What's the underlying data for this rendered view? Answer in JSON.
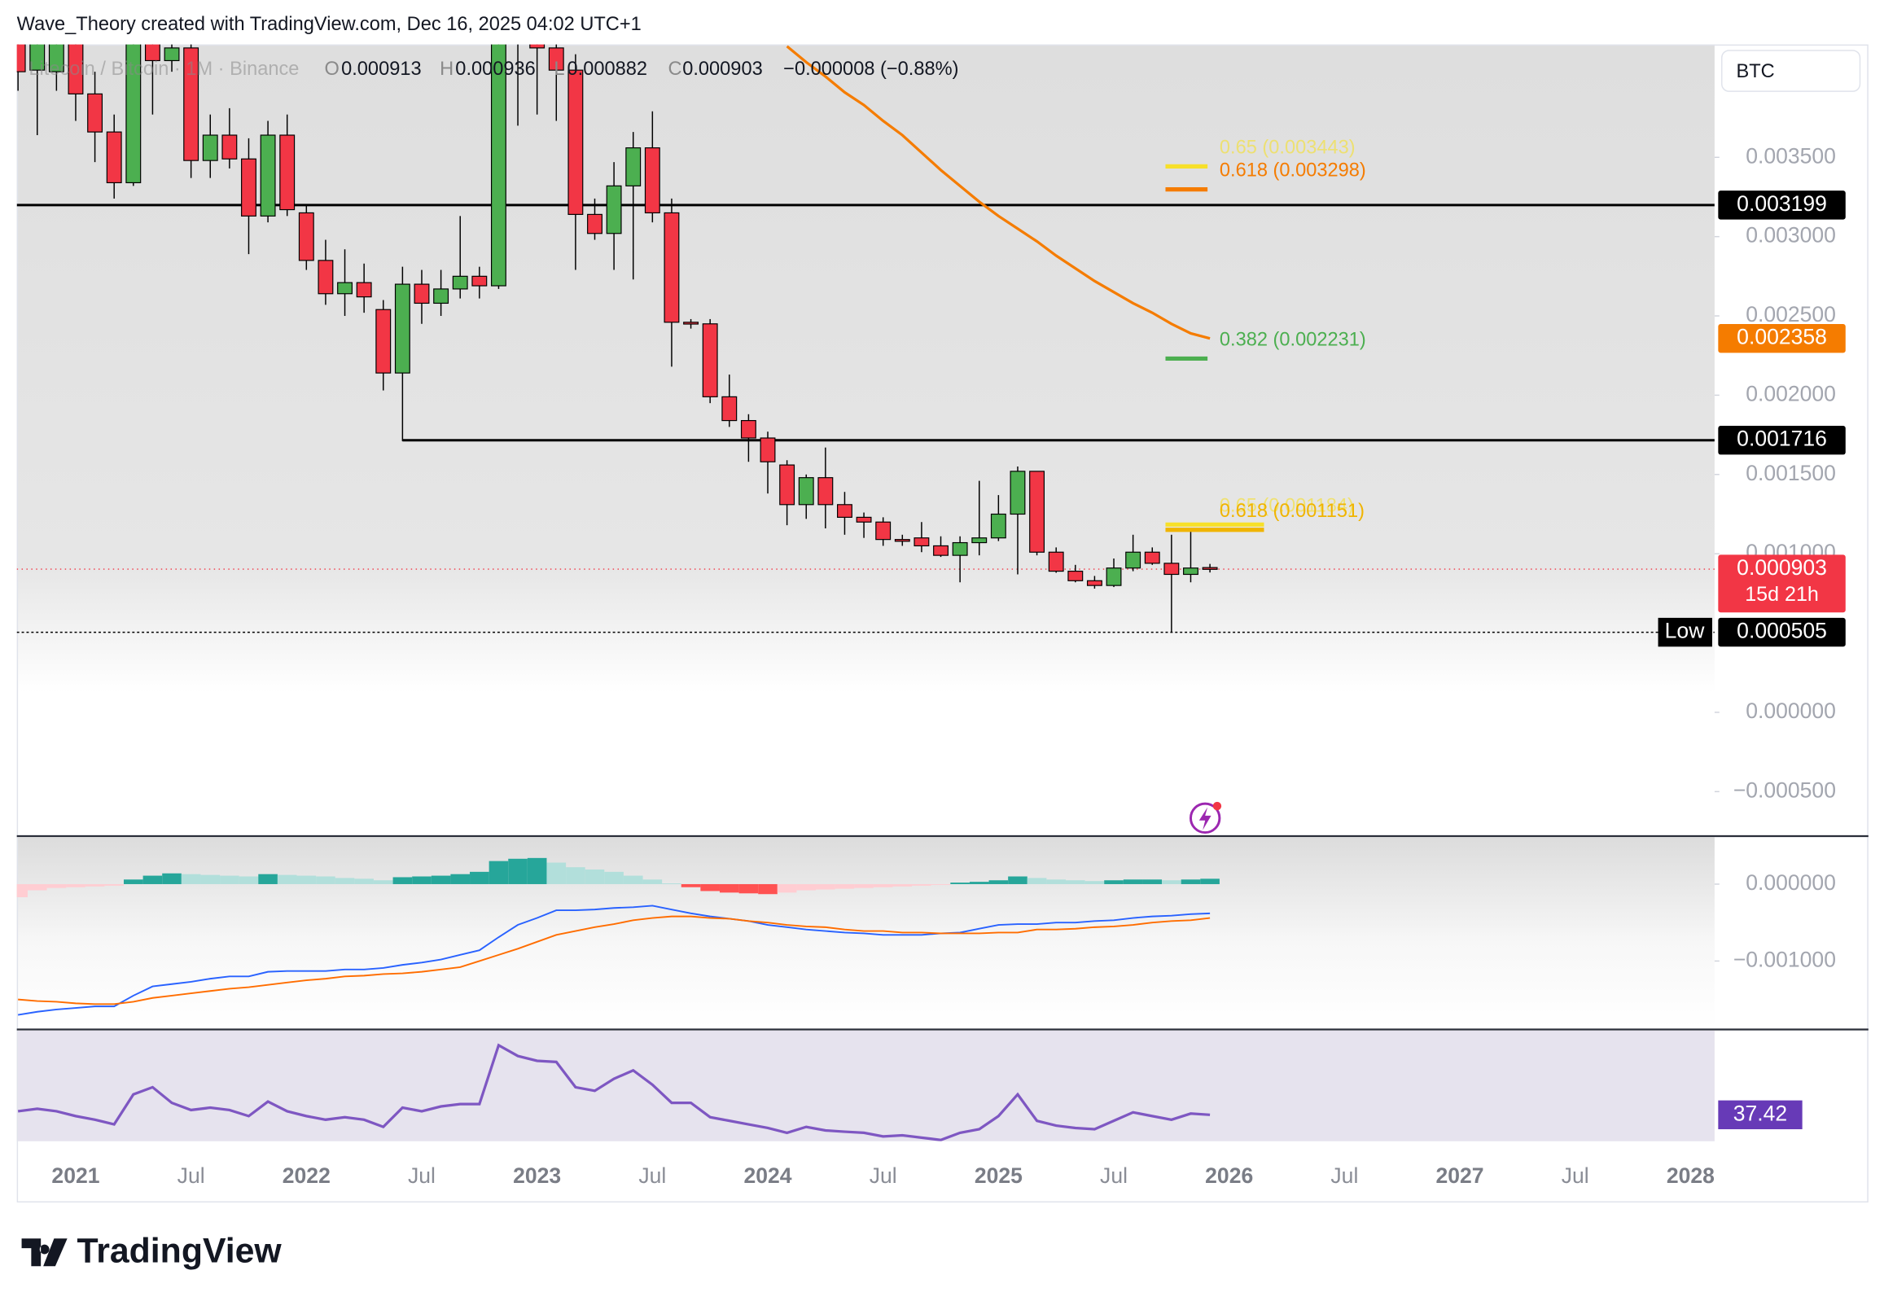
{
  "header": {
    "attribution": "Wave_Theory created with TradingView.com, Dec 16, 2025 04:02 UTC+1"
  },
  "currency_button": "BTC",
  "footer": {
    "logo_text": "TradingView"
  },
  "chart_data": [
    {
      "type": "candlestick",
      "symbol": "Litecoin / Bitcoin · 1M · Binance",
      "legend": {
        "o": "O",
        "h": "H",
        "l": "L",
        "c": "C",
        "change": "−0.000008 (−0.88%)"
      },
      "up_color": "#4caf50",
      "down_color": "#f23645",
      "x_labels": [
        "2021",
        "Jul",
        "2022",
        "Jul",
        "2023",
        "Jul",
        "2024",
        "Jul",
        "2025",
        "Jul",
        "2026",
        "Jul",
        "2027",
        "Jul",
        "2028"
      ],
      "open": [
        0.0043,
        0.00405,
        0.00404,
        0.00427,
        0.0039,
        0.00366,
        0.00334,
        0.0043,
        0.00411,
        0.00419,
        0.00348,
        0.00364,
        0.00349,
        0.00313,
        0.00364,
        0.00315,
        0.00285,
        0.00264,
        0.00271,
        0.00254,
        0.00214,
        0.0027,
        0.00258,
        0.00267,
        0.00275,
        0.00269,
        0.00434,
        0.00427,
        0.00419,
        0.00405,
        0.00314,
        0.00302,
        0.00332,
        0.00356,
        0.00315,
        0.00246,
        0.00245,
        0.00199,
        0.00184,
        0.00173,
        0.00156,
        0.00131,
        0.00148,
        0.00131,
        0.00123,
        0.0012,
        0.00109,
        0.0011,
        0.00105,
        0.00099,
        0.00107,
        0.0011,
        0.00125,
        0.00152,
        0.00101,
        0.00089,
        0.00083,
        0.0008,
        0.00091,
        0.00101,
        0.00094,
        0.00087,
        0.000913
      ],
      "high": [
        0.00442,
        0.00442,
        0.00438,
        0.00438,
        0.00404,
        0.00377,
        0.00442,
        0.00442,
        0.00427,
        0.00427,
        0.00377,
        0.00381,
        0.00362,
        0.00373,
        0.00377,
        0.0032,
        0.00298,
        0.00292,
        0.00283,
        0.0026,
        0.00281,
        0.00279,
        0.00279,
        0.00313,
        0.00281,
        0.00442,
        0.00442,
        0.00442,
        0.00434,
        0.00415,
        0.00324,
        0.00347,
        0.00366,
        0.00379,
        0.00324,
        0.00248,
        0.00248,
        0.00213,
        0.00188,
        0.00177,
        0.00159,
        0.0015,
        0.00167,
        0.00139,
        0.00126,
        0.00123,
        0.00112,
        0.0012,
        0.00111,
        0.00111,
        0.00146,
        0.00137,
        0.00155,
        0.00152,
        0.00104,
        0.00093,
        0.00086,
        0.00097,
        0.00112,
        0.00104,
        0.00112,
        0.00116,
        0.000936
      ],
      "low": [
        0.00392,
        0.00364,
        0.00392,
        0.00373,
        0.00347,
        0.00324,
        0.00332,
        0.00377,
        0.00404,
        0.00337,
        0.00337,
        0.00343,
        0.00289,
        0.00309,
        0.00313,
        0.00279,
        0.00257,
        0.0025,
        0.00252,
        0.00203,
        0.00171,
        0.00245,
        0.0025,
        0.00261,
        0.00261,
        0.00267,
        0.0037,
        0.00377,
        0.00373,
        0.00279,
        0.00298,
        0.00279,
        0.00273,
        0.00309,
        0.00218,
        0.00242,
        0.00195,
        0.0018,
        0.00158,
        0.00138,
        0.00118,
        0.00122,
        0.00116,
        0.00112,
        0.0011,
        0.00105,
        0.00105,
        0.00101,
        0.00098,
        0.00082,
        0.00099,
        0.00108,
        0.00087,
        0.00099,
        0.00088,
        0.00082,
        0.00078,
        0.00079,
        0.00089,
        0.00093,
        0.000505,
        0.00082,
        0.000882
      ],
      "close": [
        0.00404,
        0.0043,
        0.00427,
        0.0039,
        0.00366,
        0.00334,
        0.00434,
        0.00411,
        0.00419,
        0.00348,
        0.00364,
        0.00349,
        0.00313,
        0.00364,
        0.00317,
        0.00285,
        0.00264,
        0.00271,
        0.00262,
        0.00214,
        0.0027,
        0.00258,
        0.00267,
        0.00275,
        0.00269,
        0.00434,
        0.00427,
        0.00419,
        0.00405,
        0.00314,
        0.00302,
        0.00332,
        0.00356,
        0.00315,
        0.00246,
        0.00245,
        0.00199,
        0.00184,
        0.00173,
        0.00158,
        0.00131,
        0.00148,
        0.00131,
        0.00123,
        0.0012,
        0.00109,
        0.00108,
        0.00105,
        0.00099,
        0.00107,
        0.0011,
        0.00125,
        0.00152,
        0.00101,
        0.00089,
        0.00083,
        0.0008,
        0.00091,
        0.00101,
        0.00094,
        0.00087,
        0.00091,
        0.000903
      ],
      "ma": {
        "color": "#f57c00",
        "values": [
          null,
          null,
          null,
          null,
          null,
          null,
          null,
          null,
          null,
          null,
          null,
          null,
          null,
          null,
          null,
          null,
          null,
          null,
          null,
          null,
          null,
          null,
          null,
          null,
          null,
          null,
          null,
          null,
          null,
          null,
          null,
          null,
          null,
          null,
          null,
          null,
          null,
          null,
          null,
          null,
          0.0042,
          0.0041,
          0.00401,
          0.00391,
          0.00383,
          0.00373,
          0.00364,
          0.00353,
          0.00342,
          0.00332,
          0.00322,
          0.00313,
          0.00305,
          0.00297,
          0.00288,
          0.0028,
          0.00272,
          0.00265,
          0.00258,
          0.00252,
          0.00245,
          0.00239,
          0.002358
        ]
      },
      "levels": [
        {
          "value": 0.003199,
          "color": "#000000"
        },
        {
          "value": 0.001716,
          "color": "#000000"
        }
      ],
      "low_marker": {
        "label": "Low"
      },
      "countdown": "15d 21h",
      "fib_levels": [
        {
          "label": "0.65 (0.003443)",
          "price": 0.003443,
          "color": "#f7e02a"
        },
        {
          "label": "0.618 (0.003298)",
          "price": 0.003298,
          "color": "#f57c00"
        },
        {
          "label": "0.382 (0.002231)",
          "price": 0.002231,
          "color": "#4caf50"
        },
        {
          "label": "0.65 (0.001184)",
          "price": 0.001184,
          "color": "#f7e02a"
        },
        {
          "label": "0.618 (0.001151)",
          "price": 0.001151,
          "color": "#f0b400"
        }
      ],
      "ylim": [
        -0.000773,
        0.004212
      ],
      "yticks": [
        {
          "value": -0.0005,
          "label": "−0.000500"
        },
        {
          "value": 0,
          "label": "0.000000"
        },
        {
          "value": 0.001,
          "label": "0.001000"
        },
        {
          "value": 0.0015,
          "label": "0.001500"
        },
        {
          "value": 0.002,
          "label": "0.002000"
        },
        {
          "value": 0.0025,
          "label": "0.002500"
        },
        {
          "value": 0.003,
          "label": "0.003000"
        },
        {
          "value": 0.0035,
          "label": "0.003500"
        }
      ]
    },
    {
      "type": "macd",
      "bar_colors": [
        "#26a69a",
        "#b2dfdb",
        "#ff5252",
        "#ffcdd2"
      ],
      "histogram": [
        -0.00017,
        -8e-05,
        -5e-05,
        -4e-05,
        -3e-05,
        -2e-05,
        6e-05,
        0.00011,
        0.00014,
        0.00013,
        0.00012,
        0.00011,
        0.0001,
        0.00013,
        0.00012,
        0.00011,
        0.0001,
        8e-05,
        7e-05,
        5e-05,
        9e-05,
        0.0001,
        0.00011,
        0.00013,
        0.00016,
        0.0003,
        0.00033,
        0.00034,
        0.00028,
        0.00022,
        0.00019,
        0.00016,
        0.00011,
        6e-05,
        1e-05,
        -4e-05,
        -9e-05,
        -0.00011,
        -0.00012,
        -0.00013,
        -0.00011,
        -8e-05,
        -7e-05,
        -6e-05,
        -5e-05,
        -4e-05,
        -3e-05,
        -2e-05,
        -1e-05,
        2e-05,
        3e-05,
        5e-05,
        0.0001,
        8e-05,
        6e-05,
        5e-05,
        4e-05,
        5e-05,
        6e-05,
        6e-05,
        5e-05,
        6e-05,
        7e-05
      ],
      "series": [
        {
          "color": "#2962ff",
          "values": [
            -0.0017,
            -0.00166,
            -0.00163,
            -0.00161,
            -0.00159,
            -0.00159,
            -0.00145,
            -0.00133,
            -0.0013,
            -0.00127,
            -0.00123,
            -0.0012,
            -0.0012,
            -0.00114,
            -0.00113,
            -0.00113,
            -0.00113,
            -0.00111,
            -0.00111,
            -0.00109,
            -0.00105,
            -0.00102,
            -0.00098,
            -0.00092,
            -0.00086,
            -0.00069,
            -0.00053,
            -0.00044,
            -0.00034,
            -0.00034,
            -0.00033,
            -0.00031,
            -0.0003,
            -0.00028,
            -0.00033,
            -0.00038,
            -0.00042,
            -0.00045,
            -0.00048,
            -0.00053,
            -0.00056,
            -0.00059,
            -0.00061,
            -0.00063,
            -0.00064,
            -0.00066,
            -0.00066,
            -0.00066,
            -0.00064,
            -0.00063,
            -0.00058,
            -0.00053,
            -0.00052,
            -0.00052,
            -0.0005,
            -0.0005,
            -0.00048,
            -0.00047,
            -0.00044,
            -0.00042,
            -0.00041,
            -0.00039,
            -0.00038
          ]
        },
        {
          "color": "#ff6d00",
          "values": [
            -0.0015,
            -0.00152,
            -0.00153,
            -0.00155,
            -0.00156,
            -0.00156,
            -0.00153,
            -0.00148,
            -0.00145,
            -0.00142,
            -0.00139,
            -0.00136,
            -0.00134,
            -0.00131,
            -0.00128,
            -0.00125,
            -0.00123,
            -0.0012,
            -0.00119,
            -0.00117,
            -0.00116,
            -0.00114,
            -0.00111,
            -0.00108,
            -0.001,
            -0.00092,
            -0.00084,
            -0.00075,
            -0.00066,
            -0.00061,
            -0.00056,
            -0.00052,
            -0.00047,
            -0.00044,
            -0.00042,
            -0.00042,
            -0.00044,
            -0.00045,
            -0.00048,
            -0.0005,
            -0.00053,
            -0.00055,
            -0.00056,
            -0.00059,
            -0.00061,
            -0.00061,
            -0.00063,
            -0.00063,
            -0.00064,
            -0.00064,
            -0.00064,
            -0.00063,
            -0.00063,
            -0.00059,
            -0.00059,
            -0.00058,
            -0.00056,
            -0.00055,
            -0.00053,
            -0.0005,
            -0.00048,
            -0.00047,
            -0.00044
          ]
        }
      ],
      "ylim": [
        -0.001875,
        0.000609
      ],
      "yticks": [
        {
          "value": -0.001,
          "label": "−0.001000"
        },
        {
          "value": 0,
          "label": "0.000000"
        }
      ]
    },
    {
      "type": "line",
      "color": "#7e57c2",
      "badge_color": "#673ab7",
      "values": [
        39.7,
        41.3,
        39.7,
        36.6,
        34.3,
        31.3,
        50.5,
        55.1,
        45.1,
        40.5,
        42.0,
        40.5,
        36.6,
        45.9,
        39.7,
        36.6,
        34.3,
        35.9,
        34.3,
        29.7,
        42.0,
        39.7,
        42.8,
        44.3,
        44.3,
        82.0,
        75.1,
        72.0,
        71.3,
        55.1,
        52.8,
        60.5,
        65.9,
        56.7,
        45.1,
        45.1,
        35.9,
        33.6,
        31.3,
        29.0,
        25.9,
        29.7,
        27.4,
        26.6,
        25.9,
        23.6,
        24.3,
        22.8,
        21.3,
        25.9,
        28.2,
        36.6,
        50.5,
        33.6,
        30.5,
        29.0,
        28.2,
        33.6,
        39.0,
        36.6,
        34.3,
        38.2,
        37.42
      ],
      "ylim": [
        20.5,
        91.3
      ]
    }
  ]
}
